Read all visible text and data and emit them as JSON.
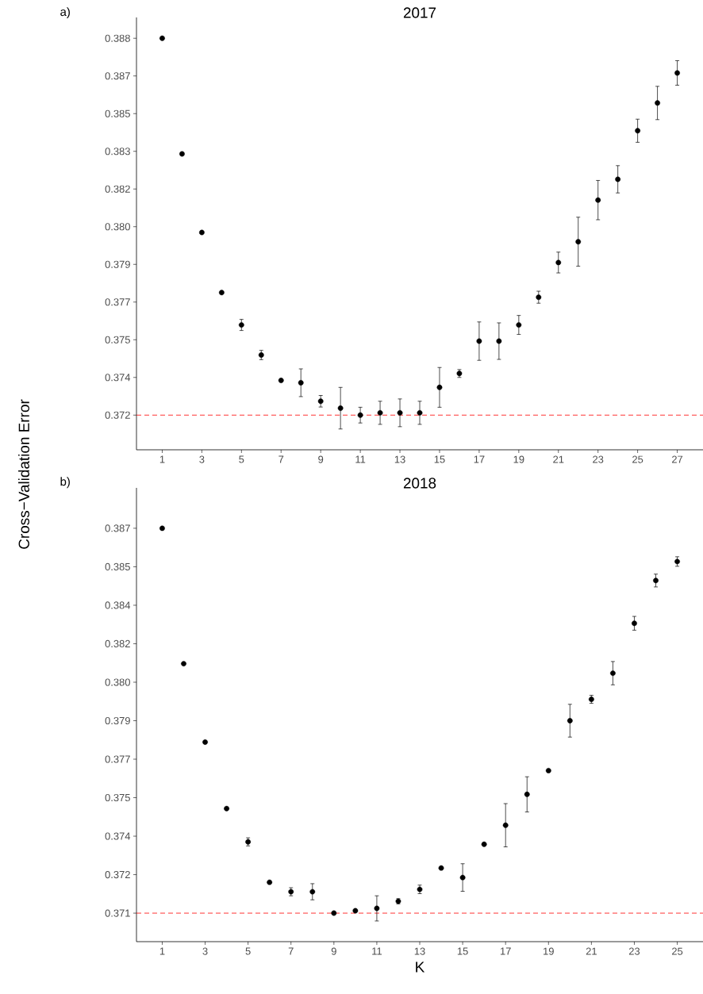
{
  "chart_data": [
    {
      "type": "scatter",
      "title": "2017",
      "ylabel": "Cross−Validation Error",
      "annotations": [
        "a)"
      ],
      "x": [
        1,
        2,
        3,
        4,
        5,
        6,
        7,
        8,
        9,
        10,
        11,
        12,
        13,
        14,
        15,
        16,
        17,
        18,
        19,
        20,
        21,
        22,
        23,
        24,
        25,
        26,
        27
      ],
      "values": [
        0.3883,
        0.3833,
        0.3799,
        0.3773,
        0.3759,
        0.3746,
        0.3735,
        0.3734,
        0.3726,
        0.3723,
        0.372,
        0.3721,
        0.3721,
        0.3721,
        0.3732,
        0.3738,
        0.3752,
        0.3752,
        0.3759,
        0.3771,
        0.3786,
        0.3795,
        0.3813,
        0.3822,
        0.3843,
        0.3855,
        0.3868
      ],
      "errors": [
        null,
        null,
        null,
        null,
        0.00024,
        0.0002,
        null,
        0.0006,
        0.00025,
        0.0009,
        0.00034,
        0.0005,
        0.0006,
        0.0005,
        0.00086,
        0.00017,
        0.00083,
        0.00079,
        0.00041,
        0.00026,
        0.00045,
        0.00106,
        0.00085,
        0.00059,
        0.0005,
        0.00072,
        0.00053
      ],
      "color": "#000000",
      "marker": "circle",
      "xlim": [
        -0.3,
        28.3
      ],
      "xticks": [
        1,
        3,
        5,
        7,
        9,
        11,
        13,
        15,
        17,
        19,
        21,
        23,
        25,
        27
      ],
      "ylim": [
        0.3705,
        0.3892
      ],
      "yticks": [
        {
          "value": 0.372,
          "label": "0.372"
        },
        {
          "value": 0.37363,
          "label": "0.374"
        },
        {
          "value": 0.37526,
          "label": "0.375"
        },
        {
          "value": 0.37689,
          "label": "0.377"
        },
        {
          "value": 0.37852,
          "label": "0.379"
        },
        {
          "value": 0.38015,
          "label": "0.380"
        },
        {
          "value": 0.38178,
          "label": "0.382"
        },
        {
          "value": 0.38341,
          "label": "0.383"
        },
        {
          "value": 0.38504,
          "label": "0.385"
        },
        {
          "value": 0.38667,
          "label": "0.387"
        },
        {
          "value": 0.3883,
          "label": "0.388"
        }
      ],
      "ref_lines": [
        {
          "axis": "y",
          "value": 0.372,
          "color": "#ff0000",
          "line_style": "dashed"
        }
      ],
      "grid": false
    },
    {
      "type": "scatter",
      "title": "2018",
      "xlabel": "K",
      "annotations": [
        "b)"
      ],
      "x": [
        1,
        2,
        3,
        4,
        5,
        6,
        7,
        8,
        9,
        10,
        11,
        12,
        13,
        14,
        15,
        16,
        17,
        18,
        19,
        20,
        21,
        22,
        23,
        24,
        25
      ],
      "values": [
        0.3868,
        0.3811,
        0.3778,
        0.375,
        0.3736,
        0.3719,
        0.3715,
        0.3715,
        0.3706,
        0.3707,
        0.3708,
        0.3711,
        0.3716,
        0.3725,
        0.3721,
        0.3735,
        0.3743,
        0.3756,
        0.3766,
        0.3787,
        0.3796,
        0.3807,
        0.3828,
        0.3846,
        0.3854
      ],
      "errors": [
        null,
        null,
        null,
        null,
        0.00017,
        null,
        0.00017,
        0.00034,
        null,
        null,
        0.00053,
        0.00011,
        0.00018,
        null,
        0.00058,
        null,
        0.00091,
        0.00074,
        null,
        0.00069,
        0.00017,
        0.00049,
        0.00029,
        0.00027,
        0.0002
      ],
      "color": "#000000",
      "marker": "circle",
      "xlim": [
        -0.2,
        26.2
      ],
      "xticks": [
        1,
        3,
        5,
        7,
        9,
        11,
        13,
        15,
        17,
        19,
        21,
        23,
        25
      ],
      "ylim": [
        0.3694,
        0.3885
      ],
      "yticks": [
        {
          "value": 0.3706,
          "label": "0.371"
        },
        {
          "value": 0.37222,
          "label": "0.372"
        },
        {
          "value": 0.37384,
          "label": "0.374"
        },
        {
          "value": 0.37546,
          "label": "0.375"
        },
        {
          "value": 0.37708,
          "label": "0.377"
        },
        {
          "value": 0.3787,
          "label": "0.379"
        },
        {
          "value": 0.38032,
          "label": "0.380"
        },
        {
          "value": 0.38194,
          "label": "0.382"
        },
        {
          "value": 0.38356,
          "label": "0.384"
        },
        {
          "value": 0.38518,
          "label": "0.385"
        },
        {
          "value": 0.3868,
          "label": "0.387"
        }
      ],
      "ref_lines": [
        {
          "axis": "y",
          "value": 0.3706,
          "color": "#ff0000",
          "line_style": "dashed"
        }
      ],
      "grid": false
    }
  ]
}
